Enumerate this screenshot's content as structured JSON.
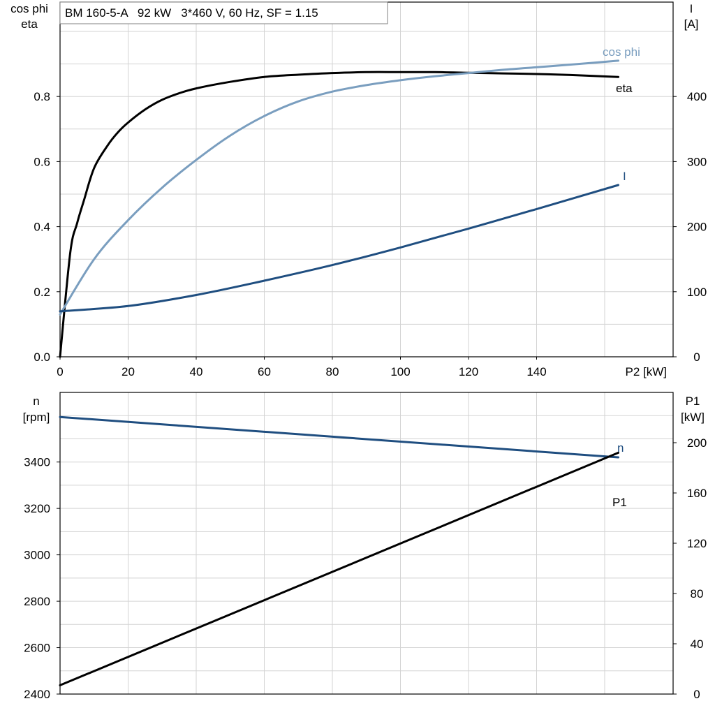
{
  "chart_data": [
    {
      "type": "line",
      "title": "BM 160-5-A   92 kW   3*460 V, 60 Hz, SF = 1.15",
      "xlabel": "P2 [kW]",
      "xlim": [
        0,
        160
      ],
      "x_ticks": [
        0,
        20,
        40,
        60,
        80,
        100,
        120,
        140
      ],
      "x_tick_labels": [
        "0",
        "20",
        "40",
        "60",
        "80",
        "100",
        "120",
        "140"
      ],
      "grid": true,
      "left_axis": {
        "label_lines": [
          "cos phi",
          "eta"
        ],
        "ylim": [
          0,
          1.0
        ],
        "ticks": [
          0,
          0.2,
          0.4,
          0.6,
          0.8
        ],
        "tick_labels": [
          "0.0",
          "0.2",
          "0.4",
          "0.6",
          "0.8"
        ]
      },
      "right_axis": {
        "label_lines": [
          "I",
          "[A]"
        ],
        "ylim": [
          0,
          500
        ],
        "ticks": [
          0,
          100,
          200,
          300,
          400
        ],
        "tick_labels": [
          "0",
          "100",
          "200",
          "300",
          "400"
        ]
      },
      "series": [
        {
          "name": "eta",
          "axis": "left",
          "color": "#000000",
          "x": [
            0,
            3,
            5,
            7,
            10,
            14,
            17,
            20,
            25,
            30,
            35,
            40,
            50,
            60,
            70,
            80,
            90,
            100,
            110,
            120,
            130,
            140,
            150,
            164
          ],
          "y": [
            0.0,
            0.32,
            0.41,
            0.48,
            0.58,
            0.65,
            0.69,
            0.72,
            0.76,
            0.79,
            0.81,
            0.825,
            0.845,
            0.86,
            0.867,
            0.872,
            0.875,
            0.875,
            0.875,
            0.873,
            0.871,
            0.869,
            0.866,
            0.86
          ]
        },
        {
          "name": "cos phi",
          "axis": "left",
          "color": "#7a9ebf",
          "x": [
            0,
            10,
            20,
            30,
            40,
            50,
            60,
            70,
            80,
            90,
            100,
            110,
            120,
            130,
            140,
            150,
            164
          ],
          "y": [
            0.13,
            0.3,
            0.42,
            0.52,
            0.605,
            0.68,
            0.74,
            0.785,
            0.815,
            0.835,
            0.85,
            0.862,
            0.872,
            0.882,
            0.89,
            0.898,
            0.91
          ]
        },
        {
          "name": "I",
          "axis": "right",
          "color": "#1f4e80",
          "x": [
            0,
            20,
            40,
            60,
            80,
            100,
            120,
            140,
            164
          ],
          "y": [
            70,
            78,
            95,
            117,
            141,
            168,
            197,
            227,
            264
          ]
        }
      ]
    },
    {
      "type": "line",
      "xlim": [
        0,
        160
      ],
      "x_ticks": [
        0,
        20,
        40,
        60,
        80,
        100,
        120,
        140
      ],
      "grid": true,
      "left_axis": {
        "label_lines": [
          "n",
          "[rpm]"
        ],
        "ylim": [
          2400,
          3700
        ],
        "ticks": [
          2400,
          2600,
          2800,
          3000,
          3200,
          3400
        ],
        "tick_labels": [
          "2400",
          "2600",
          "2800",
          "3000",
          "3200",
          "3400"
        ]
      },
      "right_axis": {
        "label_lines": [
          "P1",
          "[kW]"
        ],
        "ylim": [
          0,
          240
        ],
        "ticks": [
          0,
          40,
          80,
          120,
          160,
          200
        ],
        "tick_labels": [
          "0",
          "40",
          "80",
          "120",
          "160",
          "200"
        ]
      },
      "series": [
        {
          "name": "n",
          "axis": "left",
          "color": "#1f4e80",
          "x": [
            0,
            164
          ],
          "y": [
            3594,
            3420
          ]
        },
        {
          "name": "P1",
          "axis": "right",
          "color": "#000000",
          "x": [
            0,
            164
          ],
          "y": [
            7,
            192
          ]
        }
      ]
    }
  ]
}
